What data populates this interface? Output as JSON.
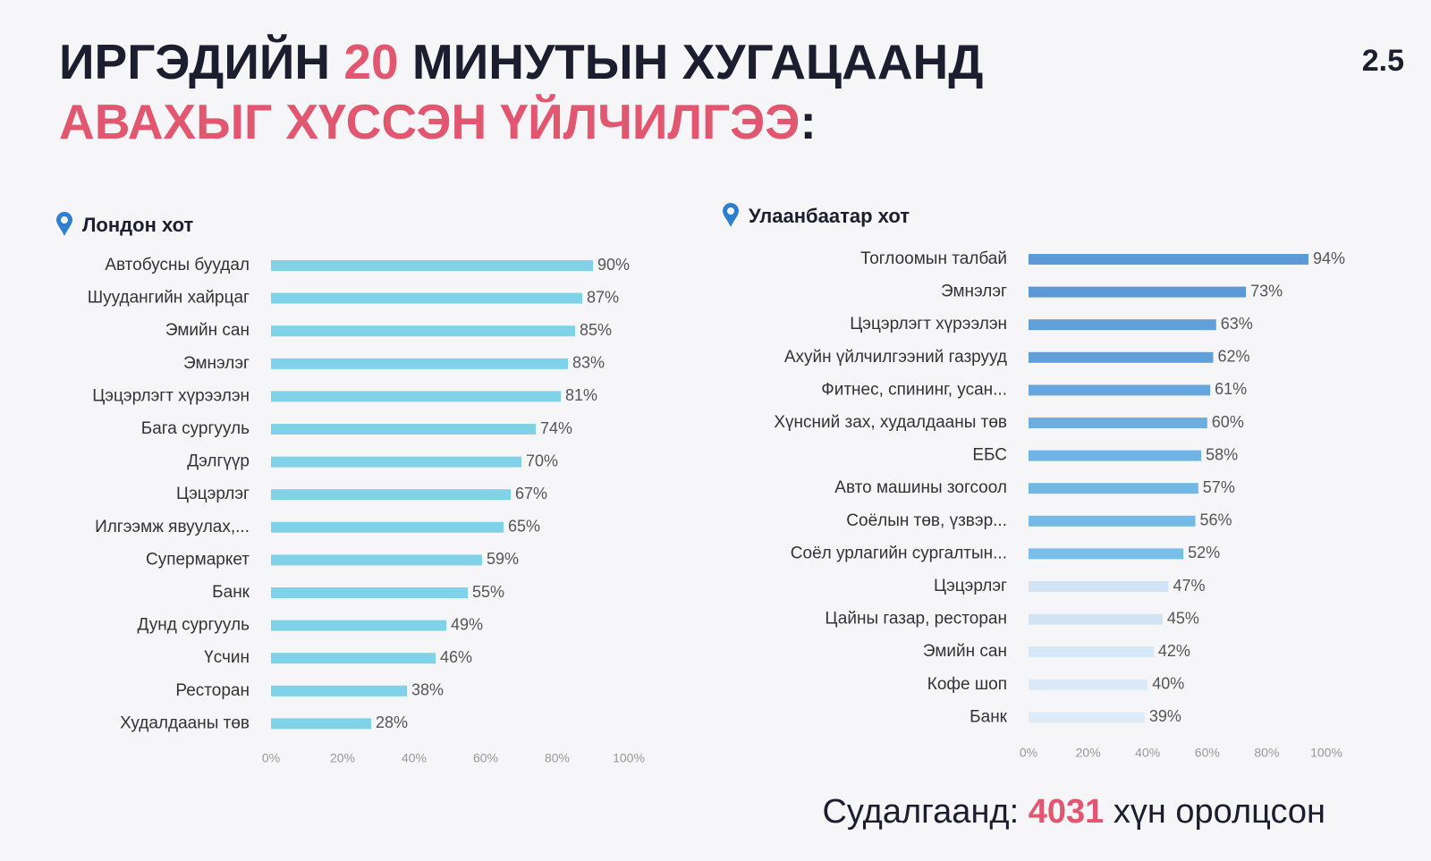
{
  "header": {
    "title_line1": [
      "ИРГЭДИЙН",
      "20",
      "МИНУТЫН ХУГАЦААНД"
    ],
    "title_line2": [
      "АВАХЫГ ХҮССЭН ҮЙЛЧИЛГЭЭ",
      ":"
    ],
    "slide_number": "2.5"
  },
  "footer": [
    "Судалгаанд:",
    "4031",
    "хүн оролцсон"
  ],
  "chart_data": [
    {
      "type": "bar",
      "orientation": "horizontal",
      "subtitle": "Лондон хот",
      "categories": [
        "Автобусны буудал",
        "Шуудангийн хайрцаг",
        "Эмийн сан",
        "Эмнэлэг",
        "Цэцэрлэгт хүрээлэн",
        "Бага сургууль",
        "Дэлгүүр",
        "Цэцэрлэг",
        "Илгээмж явуулах,...",
        "Супермаркет",
        "Банк",
        "Дунд сургууль",
        "Үсчин",
        "Ресторан",
        "Худалдааны төв"
      ],
      "values": [
        90,
        87,
        85,
        83,
        81,
        74,
        70,
        67,
        65,
        59,
        55,
        49,
        46,
        38,
        28
      ],
      "value_labels": [
        "90%",
        "87%",
        "85%",
        "83%",
        "81%",
        "74%",
        "70%",
        "67%",
        "65%",
        "59%",
        "55%",
        "49%",
        "46%",
        "38%",
        "28%"
      ],
      "color": "#7fd2e8",
      "xlim": [
        0,
        100
      ],
      "xticks": [
        {
          "value": 0,
          "label": "0%"
        },
        {
          "value": 20,
          "label": "20%"
        },
        {
          "value": 40,
          "label": "40%"
        },
        {
          "value": 60,
          "label": "60%"
        },
        {
          "value": 80,
          "label": "80%"
        },
        {
          "value": 100,
          "label": "100%"
        }
      ]
    },
    {
      "type": "bar",
      "orientation": "horizontal",
      "subtitle": "Улаанбаатар хот",
      "categories": [
        "Тоглоомын талбай",
        "Эмнэлэг",
        "Цэцэрлэгт хүрээлэн",
        "Ахуйн үйлчилгээний газрууд",
        "Фитнес, спининг, усан...",
        "Хүнсний зах, худалдааны төв",
        "ЕБС",
        "Авто машины зогсоол",
        "Соёлын төв, үзвэр...",
        "Соёл урлагийн сургалтын...",
        "Цэцэрлэг",
        "Цайны газар, ресторан",
        "Эмийн сан",
        "Кофе шоп",
        "Банк"
      ],
      "values": [
        94,
        73,
        63,
        62,
        61,
        60,
        58,
        57,
        56,
        52,
        47,
        45,
        42,
        40,
        39
      ],
      "value_labels": [
        "94%",
        "73%",
        "63%",
        "62%",
        "61%",
        "60%",
        "58%",
        "57%",
        "56%",
        "52%",
        "47%",
        "45%",
        "42%",
        "40%",
        "39%"
      ],
      "colors": [
        "#5b9ad6",
        "#5b9ad6",
        "#5fa0da",
        "#5fa0da",
        "#64a6dd",
        "#6aaee2",
        "#6fb4e5",
        "#72b7e6",
        "#74bae8",
        "#78bee9",
        "#d2e4f4",
        "#d2e4f4",
        "#d6e7f5",
        "#d9e9f6",
        "#dcebf7"
      ],
      "xlim": [
        0,
        100
      ],
      "xticks": [
        {
          "value": 0,
          "label": "0%"
        },
        {
          "value": 20,
          "label": "20%"
        },
        {
          "value": 40,
          "label": "40%"
        },
        {
          "value": 60,
          "label": "60%"
        },
        {
          "value": 80,
          "label": "80%"
        },
        {
          "value": 100,
          "label": "100%"
        }
      ]
    }
  ]
}
